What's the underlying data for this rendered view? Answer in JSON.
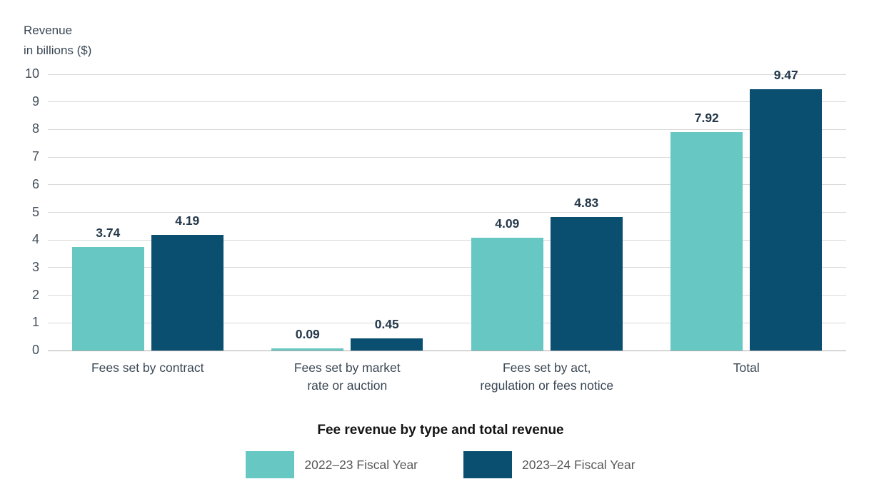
{
  "chart_data": {
    "type": "bar",
    "title": "Fee revenue by type and total revenue",
    "ylabel": "Revenue\nin billions ($)",
    "categories": [
      "Fees set by contract",
      "Fees set by market\nrate or auction",
      "Fees set by act,\nregulation or fees notice",
      "Total"
    ],
    "series": [
      {
        "name": "2022–23 Fiscal Year",
        "color": "#66C7C3",
        "values": [
          3.74,
          0.09,
          4.09,
          7.92
        ]
      },
      {
        "name": "2023–24 Fiscal Year",
        "color": "#0A4E70",
        "values": [
          4.19,
          0.45,
          4.83,
          9.47
        ]
      }
    ],
    "ylim": [
      0,
      10
    ],
    "yticks": [
      0,
      1,
      2,
      3,
      4,
      5,
      6,
      7,
      8,
      9,
      10
    ],
    "grid": true,
    "legend_position": "bottom",
    "value_label_decimals": 2
  },
  "colors": {
    "gridline": "#D9D9D9",
    "axis_line": "#ACACAC",
    "tick_label": "#44505C",
    "value_label": "#24384A",
    "category_label": "#3A4754",
    "title": "#141414",
    "legend_text": "#595959",
    "background": "#FFFFFF"
  }
}
